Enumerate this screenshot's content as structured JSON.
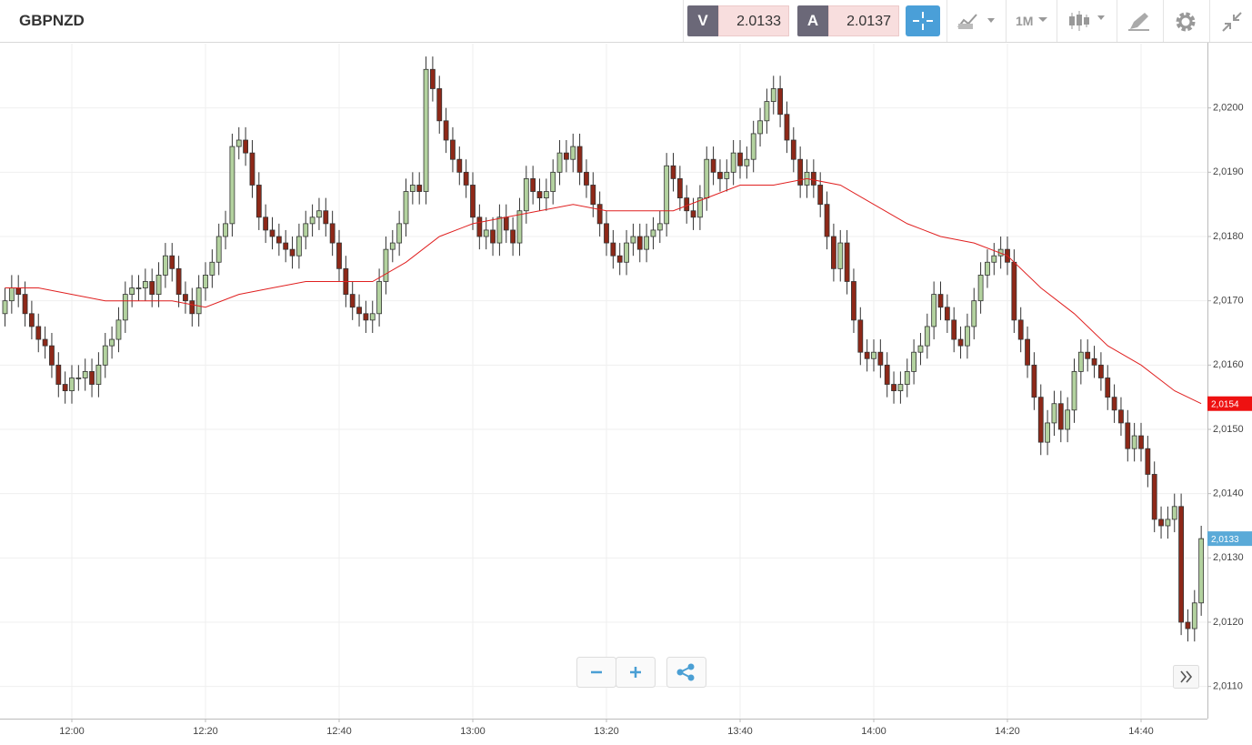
{
  "toolbar": {
    "symbol": "GBPNZD",
    "bid_label": "V",
    "bid": 2.0133,
    "ask_label": "A",
    "ask": 2.0137,
    "timeframe": "1M"
  },
  "chart_data": {
    "type": "candlestick",
    "x": [
      "11:50",
      "11:51",
      "11:52",
      "11:53",
      "11:54",
      "11:55",
      "11:56",
      "11:57",
      "11:58",
      "11:59",
      "12:00",
      "12:01",
      "12:02",
      "12:03",
      "12:04",
      "12:05",
      "12:06",
      "12:07",
      "12:08",
      "12:09",
      "12:10",
      "12:11",
      "12:12",
      "12:13",
      "12:14",
      "12:15",
      "12:16",
      "12:17",
      "12:18",
      "12:19",
      "12:20",
      "12:21",
      "12:22",
      "12:23",
      "12:24",
      "12:25",
      "12:26",
      "12:27",
      "12:28",
      "12:29",
      "12:30",
      "12:31",
      "12:32",
      "12:33",
      "12:34",
      "12:35",
      "12:36",
      "12:37",
      "12:38",
      "12:39",
      "12:40",
      "12:41",
      "12:42",
      "12:43",
      "12:44",
      "12:45",
      "12:46",
      "12:47",
      "12:48",
      "12:49",
      "12:50",
      "12:51",
      "12:52",
      "12:53",
      "12:54",
      "12:55",
      "12:56",
      "12:57",
      "12:58",
      "12:59",
      "13:00",
      "13:01",
      "13:02",
      "13:03",
      "13:04",
      "13:05",
      "13:06",
      "13:07",
      "13:08",
      "13:09",
      "13:10",
      "13:11",
      "13:12",
      "13:13",
      "13:14",
      "13:15",
      "13:16",
      "13:17",
      "13:18",
      "13:19",
      "13:20",
      "13:21",
      "13:22",
      "13:23",
      "13:24",
      "13:25",
      "13:26",
      "13:27",
      "13:28",
      "13:29",
      "13:30",
      "13:31",
      "13:32",
      "13:33",
      "13:34",
      "13:35",
      "13:36",
      "13:37",
      "13:38",
      "13:39",
      "13:40",
      "13:41",
      "13:42",
      "13:43",
      "13:44",
      "13:45",
      "13:46",
      "13:47",
      "13:48",
      "13:49",
      "13:50",
      "13:51",
      "13:52",
      "13:53",
      "13:54",
      "13:55",
      "13:56",
      "13:57",
      "13:58",
      "13:59",
      "14:00",
      "14:01",
      "14:02",
      "14:03",
      "14:04",
      "14:05",
      "14:06",
      "14:07",
      "14:08",
      "14:09",
      "14:10",
      "14:11",
      "14:12",
      "14:13",
      "14:14",
      "14:15",
      "14:16",
      "14:17",
      "14:18",
      "14:19",
      "14:20",
      "14:21",
      "14:22",
      "14:23",
      "14:24",
      "14:25",
      "14:26",
      "14:27",
      "14:28",
      "14:29",
      "14:30",
      "14:31",
      "14:32",
      "14:33",
      "14:34",
      "14:35",
      "14:36",
      "14:37",
      "14:38",
      "14:39",
      "14:40",
      "14:41",
      "14:42",
      "14:43",
      "14:44",
      "14:45",
      "14:46",
      "14:47",
      "14:48",
      "14:49"
    ],
    "open": [
      2.0168,
      2.017,
      2.0172,
      2.0171,
      2.0168,
      2.0166,
      2.0164,
      2.0163,
      2.016,
      2.0157,
      2.0156,
      2.0158,
      2.0158,
      2.0159,
      2.0157,
      2.016,
      2.0163,
      2.0164,
      2.0167,
      2.0171,
      2.0172,
      2.0172,
      2.0173,
      2.0171,
      2.0174,
      2.0177,
      2.0175,
      2.0171,
      2.017,
      2.0168,
      2.0172,
      2.0174,
      2.0176,
      2.018,
      2.0182,
      2.0194,
      2.0195,
      2.0193,
      2.0188,
      2.0183,
      2.0181,
      2.018,
      2.0179,
      2.0178,
      2.0177,
      2.018,
      2.0182,
      2.0183,
      2.0184,
      2.0182,
      2.0179,
      2.0175,
      2.0171,
      2.0169,
      2.0168,
      2.0167,
      2.0168,
      2.0173,
      2.0178,
      2.0179,
      2.0182,
      2.0187,
      2.0188,
      2.0187,
      2.0206,
      2.0203,
      2.0198,
      2.0195,
      2.0192,
      2.019,
      2.0188,
      2.0183,
      2.018,
      2.0181,
      2.0179,
      2.0183,
      2.0181,
      2.0179,
      2.0184,
      2.0189,
      2.0187,
      2.0186,
      2.0187,
      2.019,
      2.0193,
      2.0192,
      2.0194,
      2.019,
      2.0188,
      2.0185,
      2.0182,
      2.0179,
      2.0177,
      2.0176,
      2.0179,
      2.018,
      2.0178,
      2.018,
      2.0181,
      2.0182,
      2.0191,
      2.0189,
      2.0186,
      2.0184,
      2.0183,
      2.0186,
      2.0192,
      2.019,
      2.0189,
      2.019,
      2.0193,
      2.0191,
      2.0192,
      2.0196,
      2.0198,
      2.0201,
      2.0203,
      2.0199,
      2.0195,
      2.0192,
      2.0188,
      2.019,
      2.0188,
      2.0185,
      2.018,
      2.0175,
      2.0179,
      2.0173,
      2.0167,
      2.0162,
      2.0161,
      2.0162,
      2.016,
      2.0157,
      2.0156,
      2.0157,
      2.0159,
      2.0162,
      2.0163,
      2.0166,
      2.0171,
      2.0169,
      2.0167,
      2.0164,
      2.0163,
      2.0166,
      2.017,
      2.0174,
      2.0176,
      2.0177,
      2.0178,
      2.0176,
      2.0167,
      2.0164,
      2.016,
      2.0155,
      2.0148,
      2.0151,
      2.0154,
      2.015,
      2.0153,
      2.0159,
      2.0162,
      2.0161,
      2.016,
      2.0158,
      2.0155,
      2.0153,
      2.0151,
      2.0147,
      2.0149,
      2.0147,
      2.0143,
      2.0136,
      2.0135,
      2.0136,
      2.0138,
      2.012,
      2.0119,
      2.0123
    ],
    "high": [
      2.0172,
      2.0174,
      2.0174,
      2.0173,
      2.017,
      2.0168,
      2.0166,
      2.0165,
      2.0162,
      2.0159,
      2.016,
      2.016,
      2.0161,
      2.0161,
      2.0162,
      2.0165,
      2.0166,
      2.0169,
      2.0173,
      2.0174,
      2.0174,
      2.0175,
      2.0175,
      2.0176,
      2.0179,
      2.0179,
      2.0177,
      2.0173,
      2.0172,
      2.0174,
      2.0176,
      2.0178,
      2.0182,
      2.0184,
      2.0196,
      2.0197,
      2.0197,
      2.0195,
      2.019,
      2.0185,
      2.0183,
      2.0182,
      2.0181,
      2.018,
      2.0182,
      2.0184,
      2.0185,
      2.0186,
      2.0186,
      2.0184,
      2.0181,
      2.0177,
      2.0173,
      2.0171,
      2.017,
      2.017,
      2.0175,
      2.018,
      2.0181,
      2.0184,
      2.0189,
      2.019,
      2.019,
      2.0208,
      2.0208,
      2.0205,
      2.02,
      2.0197,
      2.0194,
      2.0192,
      2.019,
      2.0185,
      2.0183,
      2.0183,
      2.0185,
      2.0185,
      2.0183,
      2.0186,
      2.0191,
      2.0191,
      2.0189,
      2.0189,
      2.0192,
      2.0195,
      2.0195,
      2.0196,
      2.0196,
      2.0192,
      2.019,
      2.0187,
      2.0184,
      2.0181,
      2.0179,
      2.0181,
      2.0182,
      2.0182,
      2.0182,
      2.0183,
      2.0184,
      2.0193,
      2.0193,
      2.0191,
      2.0188,
      2.0186,
      2.0188,
      2.0194,
      2.0194,
      2.0192,
      2.0192,
      2.0195,
      2.0195,
      2.0194,
      2.0198,
      2.02,
      2.0203,
      2.0205,
      2.0205,
      2.0201,
      2.0197,
      2.0194,
      2.0192,
      2.0192,
      2.019,
      2.0187,
      2.0182,
      2.0181,
      2.0181,
      2.0175,
      2.0169,
      2.0164,
      2.0164,
      2.0164,
      2.0162,
      2.0159,
      2.0159,
      2.0161,
      2.0164,
      2.0165,
      2.0168,
      2.0173,
      2.0173,
      2.0171,
      2.0169,
      2.0166,
      2.0168,
      2.0172,
      2.0176,
      2.0178,
      2.0179,
      2.018,
      2.018,
      2.0178,
      2.0169,
      2.0166,
      2.0162,
      2.0157,
      2.0153,
      2.0156,
      2.0156,
      2.0155,
      2.0161,
      2.0164,
      2.0164,
      2.0163,
      2.0162,
      2.016,
      2.0157,
      2.0155,
      2.0153,
      2.0151,
      2.0151,
      2.0149,
      2.0145,
      2.0138,
      2.0138,
      2.014,
      2.014,
      2.0122,
      2.0125,
      2.0135
    ],
    "low": [
      2.0166,
      2.0168,
      2.0169,
      2.0166,
      2.0164,
      2.0162,
      2.0161,
      2.0158,
      2.0155,
      2.0154,
      2.0154,
      2.0156,
      2.0156,
      2.0155,
      2.0155,
      2.0158,
      2.0161,
      2.0162,
      2.0165,
      2.0169,
      2.017,
      2.017,
      2.0169,
      2.0169,
      2.0172,
      2.0173,
      2.0169,
      2.0168,
      2.0166,
      2.0166,
      2.017,
      2.0172,
      2.0174,
      2.0178,
      2.018,
      2.0192,
      2.0191,
      2.0186,
      2.0181,
      2.0179,
      2.0178,
      2.0177,
      2.0176,
      2.0175,
      2.0175,
      2.0178,
      2.018,
      2.0181,
      2.018,
      2.0177,
      2.0173,
      2.0169,
      2.0167,
      2.0166,
      2.0165,
      2.0165,
      2.0166,
      2.0171,
      2.0176,
      2.0177,
      2.018,
      2.0185,
      2.0185,
      2.0185,
      2.0201,
      2.0196,
      2.0193,
      2.019,
      2.0188,
      2.0186,
      2.0181,
      2.0178,
      2.0178,
      2.0177,
      2.0177,
      2.0179,
      2.0177,
      2.0177,
      2.0182,
      2.0185,
      2.0184,
      2.0184,
      2.0185,
      2.0188,
      2.019,
      2.019,
      2.0188,
      2.0186,
      2.0183,
      2.018,
      2.0177,
      2.0175,
      2.0174,
      2.0174,
      2.0177,
      2.0176,
      2.0176,
      2.0178,
      2.0179,
      2.018,
      2.0187,
      2.0184,
      2.0182,
      2.0181,
      2.0181,
      2.0184,
      2.0188,
      2.0187,
      2.0187,
      2.0188,
      2.0189,
      2.0189,
      2.019,
      2.0194,
      2.0196,
      2.0199,
      2.0197,
      2.0193,
      2.019,
      2.0186,
      2.0186,
      2.0186,
      2.0183,
      2.0178,
      2.0173,
      2.0173,
      2.0171,
      2.0165,
      2.016,
      2.0159,
      2.0159,
      2.0158,
      2.0155,
      2.0154,
      2.0154,
      2.0155,
      2.0157,
      2.016,
      2.0161,
      2.0164,
      2.0167,
      2.0165,
      2.0162,
      2.0161,
      2.0161,
      2.0164,
      2.0168,
      2.0172,
      2.0174,
      2.0175,
      2.0174,
      2.0165,
      2.0162,
      2.0158,
      2.0153,
      2.0146,
      2.0146,
      2.0149,
      2.0148,
      2.0148,
      2.0151,
      2.0157,
      2.0159,
      2.0158,
      2.0156,
      2.0153,
      2.0151,
      2.0149,
      2.0145,
      2.0145,
      2.0145,
      2.0141,
      2.0134,
      2.0133,
      2.0133,
      2.0134,
      2.0118,
      2.0117,
      2.0117,
      2.0121
    ],
    "close": [
      2.017,
      2.0172,
      2.0171,
      2.0168,
      2.0166,
      2.0164,
      2.0163,
      2.016,
      2.0157,
      2.0156,
      2.0158,
      2.0158,
      2.0159,
      2.0157,
      2.016,
      2.0163,
      2.0164,
      2.0167,
      2.0171,
      2.0172,
      2.0172,
      2.0173,
      2.0171,
      2.0174,
      2.0177,
      2.0175,
      2.0171,
      2.017,
      2.0168,
      2.0172,
      2.0174,
      2.0176,
      2.018,
      2.0182,
      2.0194,
      2.0195,
      2.0193,
      2.0188,
      2.0183,
      2.0181,
      2.018,
      2.0179,
      2.0178,
      2.0177,
      2.018,
      2.0182,
      2.0183,
      2.0184,
      2.0182,
      2.0179,
      2.0175,
      2.0171,
      2.0169,
      2.0168,
      2.0167,
      2.0168,
      2.0173,
      2.0178,
      2.0179,
      2.0182,
      2.0187,
      2.0188,
      2.0187,
      2.0206,
      2.0203,
      2.0198,
      2.0195,
      2.0192,
      2.019,
      2.0188,
      2.0183,
      2.018,
      2.0181,
      2.0179,
      2.0183,
      2.0181,
      2.0179,
      2.0184,
      2.0189,
      2.0187,
      2.0186,
      2.0187,
      2.019,
      2.0193,
      2.0192,
      2.0194,
      2.019,
      2.0188,
      2.0185,
      2.0182,
      2.0179,
      2.0177,
      2.0176,
      2.0179,
      2.018,
      2.0178,
      2.018,
      2.0181,
      2.0182,
      2.0191,
      2.0189,
      2.0186,
      2.0184,
      2.0183,
      2.0186,
      2.0192,
      2.019,
      2.0189,
      2.019,
      2.0193,
      2.0191,
      2.0192,
      2.0196,
      2.0198,
      2.0201,
      2.0203,
      2.0199,
      2.0195,
      2.0192,
      2.0188,
      2.019,
      2.0188,
      2.0185,
      2.018,
      2.0175,
      2.0179,
      2.0173,
      2.0167,
      2.0162,
      2.0161,
      2.0162,
      2.016,
      2.0157,
      2.0156,
      2.0157,
      2.0159,
      2.0162,
      2.0163,
      2.0166,
      2.0171,
      2.0169,
      2.0167,
      2.0164,
      2.0163,
      2.0166,
      2.017,
      2.0174,
      2.0176,
      2.0177,
      2.0178,
      2.0176,
      2.0167,
      2.0164,
      2.016,
      2.0155,
      2.0148,
      2.0151,
      2.0154,
      2.015,
      2.0153,
      2.0159,
      2.0162,
      2.0161,
      2.016,
      2.0158,
      2.0155,
      2.0153,
      2.0151,
      2.0147,
      2.0149,
      2.0147,
      2.0143,
      2.0136,
      2.0135,
      2.0136,
      2.0138,
      2.012,
      2.0119,
      2.0123,
      2.0133
    ],
    "up_color": "#b3d29f",
    "down_color": "#8e2818",
    "ma": {
      "color": "#e02020",
      "x": [
        "11:50",
        "11:55",
        "12:00",
        "12:05",
        "12:10",
        "12:15",
        "12:20",
        "12:25",
        "12:30",
        "12:35",
        "12:40",
        "12:45",
        "12:50",
        "12:55",
        "13:00",
        "13:05",
        "13:10",
        "13:15",
        "13:20",
        "13:25",
        "13:30",
        "13:35",
        "13:40",
        "13:45",
        "13:50",
        "13:55",
        "14:00",
        "14:05",
        "14:10",
        "14:15",
        "14:20",
        "14:25",
        "14:30",
        "14:35",
        "14:40",
        "14:45",
        "14:49"
      ],
      "values": [
        2.0172,
        2.0172,
        2.0171,
        2.017,
        2.017,
        2.017,
        2.0169,
        2.0171,
        2.0172,
        2.0173,
        2.0173,
        2.0173,
        2.0176,
        2.018,
        2.0182,
        2.0183,
        2.0184,
        2.0185,
        2.0184,
        2.0184,
        2.0184,
        2.0186,
        2.0188,
        2.0188,
        2.0189,
        2.0188,
        2.0185,
        2.0182,
        2.018,
        2.0179,
        2.0177,
        2.0172,
        2.0168,
        2.0163,
        2.016,
        2.0156,
        2.0154
      ]
    },
    "ma_tag": {
      "value": 2.0154,
      "label": "2,0154",
      "color": "#ee1111"
    },
    "last_tag": {
      "value": 2.0133,
      "label": "2,0133",
      "color": "#5aaad8"
    },
    "ylim": [
      2.0105,
      2.021
    ],
    "yticks": [
      {
        "value": 2.011,
        "label": "2,0110"
      },
      {
        "value": 2.012,
        "label": "2,0120"
      },
      {
        "value": 2.013,
        "label": "2,0130"
      },
      {
        "value": 2.014,
        "label": "2,0140"
      },
      {
        "value": 2.015,
        "label": "2,0150"
      },
      {
        "value": 2.016,
        "label": "2,0160"
      },
      {
        "value": 2.017,
        "label": "2,0170"
      },
      {
        "value": 2.018,
        "label": "2,0180"
      },
      {
        "value": 2.019,
        "label": "2,0190"
      },
      {
        "value": 2.02,
        "label": "2,0200"
      }
    ],
    "xticks": [
      "12:00",
      "12:20",
      "12:40",
      "13:00",
      "13:20",
      "13:40",
      "14:00",
      "14:20",
      "14:40"
    ],
    "grid": true
  }
}
